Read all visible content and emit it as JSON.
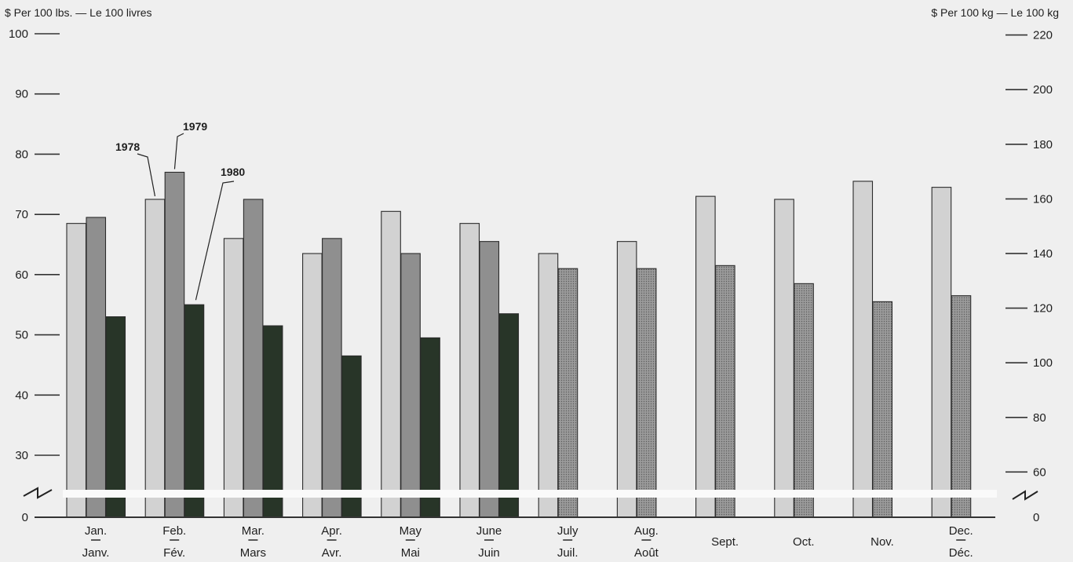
{
  "chart_data": {
    "type": "bar",
    "left_unit_label": "$ Per 100 lbs. — Le 100 livres",
    "right_unit_label": "$ Per 100 kg — Le 100 kg",
    "categories": [
      {
        "en": "Jan.",
        "fr": "Janv."
      },
      {
        "en": "Feb.",
        "fr": "Fév."
      },
      {
        "en": "Mar.",
        "fr": "Mars"
      },
      {
        "en": "Apr.",
        "fr": "Avr."
      },
      {
        "en": "May",
        "fr": "Mai"
      },
      {
        "en": "June",
        "fr": "Juin"
      },
      {
        "en": "July",
        "fr": "Juil."
      },
      {
        "en": "Aug.",
        "fr": "Août"
      },
      {
        "en": "Sept.",
        "fr": ""
      },
      {
        "en": "Oct.",
        "fr": ""
      },
      {
        "en": "Nov.",
        "fr": ""
      },
      {
        "en": "Dec.",
        "fr": "Déc."
      }
    ],
    "series": [
      {
        "name": "1978",
        "color": "#d2d2d2",
        "values": [
          68.5,
          72.5,
          66.0,
          63.5,
          70.5,
          68.5,
          63.5,
          65.5,
          73.0,
          72.5,
          75.5,
          74.5
        ]
      },
      {
        "name": "1979",
        "color": "#8f8f8f",
        "values": [
          69.5,
          77.0,
          72.5,
          66.0,
          63.5,
          65.5,
          61.0,
          61.0,
          61.5,
          58.5,
          55.5,
          56.5
        ]
      },
      {
        "name": "1980",
        "color": "#283528",
        "values": [
          53.0,
          55.0,
          51.5,
          46.5,
          49.5,
          53.5,
          null,
          null,
          null,
          null,
          null,
          null
        ]
      }
    ],
    "left_axis": {
      "ticks": [
        0,
        30,
        40,
        50,
        60,
        70,
        80,
        90,
        100
      ],
      "break_between": [
        0,
        30
      ]
    },
    "right_axis": {
      "ticks": [
        0,
        60,
        80,
        100,
        120,
        140,
        160,
        180,
        200,
        220
      ]
    },
    "annotations": [
      "1978",
      "1979",
      "1980"
    ]
  }
}
